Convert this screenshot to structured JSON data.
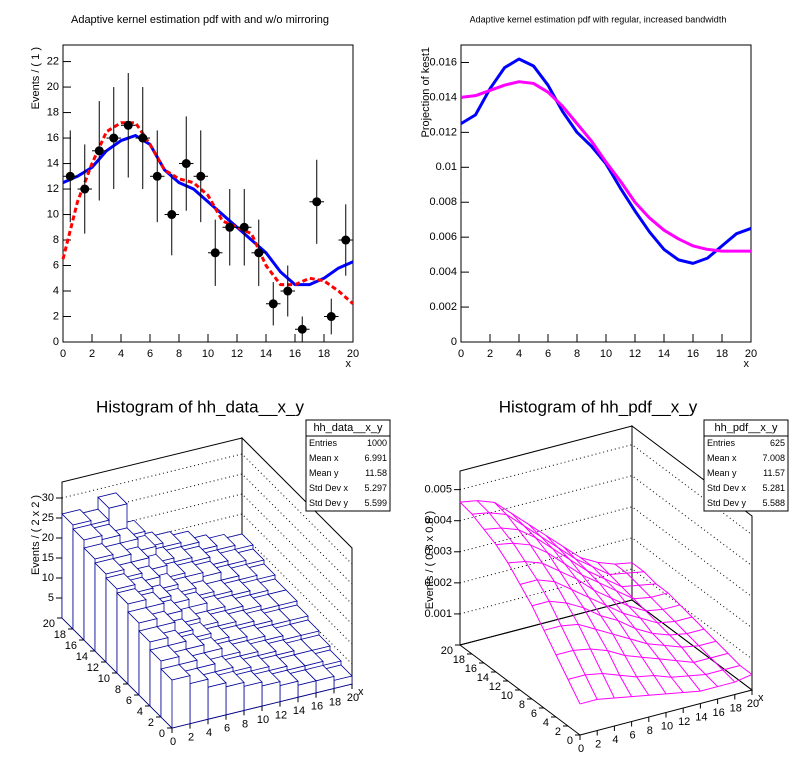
{
  "chart_data": [
    {
      "type": "line",
      "title": "Adaptive kernel estimation pdf with and w/o mirroring",
      "xlabel": "x",
      "ylabel": "Events / ( 1 )",
      "xlim": [
        0,
        20
      ],
      "ylim": [
        0,
        23.3
      ],
      "xticks": [
        0,
        2,
        4,
        6,
        8,
        10,
        12,
        14,
        16,
        18,
        20
      ],
      "yticks": [
        0,
        2,
        4,
        6,
        8,
        10,
        12,
        14,
        16,
        18,
        20,
        22
      ],
      "x": [
        0,
        1,
        2,
        3,
        4,
        5,
        6,
        7,
        8,
        9,
        10,
        11,
        12,
        13,
        14,
        15,
        16,
        17,
        18,
        19,
        20
      ],
      "series": [
        {
          "color": "#0000ff",
          "values": [
            12.5,
            13,
            13.7,
            15,
            15.8,
            16.2,
            15.5,
            13.5,
            12.5,
            12,
            11,
            10,
            9,
            8,
            7,
            5.5,
            4.5,
            4.5,
            5,
            5.8,
            6.3
          ]
        },
        {
          "color": "#ff0000",
          "dashed": true,
          "values": [
            6.5,
            11,
            14,
            16.5,
            17.2,
            17.2,
            15.5,
            13.5,
            12.8,
            12.5,
            11.5,
            9.5,
            9,
            8.5,
            6,
            4.5,
            4.5,
            5,
            4.8,
            4,
            3
          ]
        }
      ],
      "points": {
        "color": "#000000",
        "xerror": 0.5,
        "x": [
          0.5,
          1.5,
          2.5,
          3.5,
          4.5,
          5.5,
          6.5,
          7.5,
          8.5,
          9.5,
          10.5,
          11.5,
          12.5,
          13.5,
          14.5,
          15.5,
          16.5,
          17.5,
          18.5,
          19.5
        ],
        "values": [
          13,
          12,
          15,
          16,
          17,
          16,
          13,
          10,
          14,
          13,
          7,
          9,
          9,
          7,
          3,
          4,
          1,
          11,
          2,
          8
        ],
        "errors": [
          3.6,
          3.5,
          3.9,
          4,
          4.1,
          4,
          3.6,
          3.2,
          3.7,
          3.6,
          2.6,
          3,
          3,
          2.6,
          1.7,
          2,
          1,
          3.3,
          1.4,
          2.8
        ]
      }
    },
    {
      "type": "line",
      "title": "Adaptive kernel estimation pdf with regular, increased bandwidth",
      "xlabel": "x",
      "ylabel": "Projection of kest1",
      "xlim": [
        0,
        20
      ],
      "ylim": [
        0,
        0.017
      ],
      "xticks": [
        0,
        2,
        4,
        6,
        8,
        10,
        12,
        14,
        16,
        18,
        20
      ],
      "yticks": [
        0,
        0.002,
        0.004,
        0.006,
        0.008,
        0.01,
        0.012,
        0.014,
        0.016
      ],
      "x": [
        0,
        1,
        2,
        3,
        4,
        5,
        6,
        7,
        8,
        9,
        10,
        11,
        12,
        13,
        14,
        15,
        16,
        17,
        18,
        19,
        20
      ],
      "series": [
        {
          "color": "#0000ff",
          "values": [
            0.0125,
            0.013,
            0.0145,
            0.0157,
            0.0162,
            0.0158,
            0.0147,
            0.0132,
            0.012,
            0.0112,
            0.0102,
            0.0088,
            0.0075,
            0.0063,
            0.0053,
            0.0047,
            0.0045,
            0.0048,
            0.0055,
            0.0062,
            0.0065
          ]
        },
        {
          "color": "#ff00ff",
          "values": [
            0.014,
            0.0141,
            0.0144,
            0.0147,
            0.0149,
            0.0148,
            0.0143,
            0.0135,
            0.0125,
            0.0115,
            0.0103,
            0.0092,
            0.008,
            0.0071,
            0.0064,
            0.0059,
            0.0055,
            0.0053,
            0.0052,
            0.0052,
            0.0052
          ]
        }
      ]
    },
    {
      "type": "lego",
      "title": "Histogram of hh_data__x_y",
      "zlabel": "Events / ( 2 x 2 )",
      "xlabel": "x",
      "color": "#000099",
      "stats": {
        "title": "hh_data__x_y",
        "rows": [
          {
            "label": "Entries",
            "value": 1000
          },
          {
            "label": "Mean x",
            "value": 6.991
          },
          {
            "label": "Mean y",
            "value": 11.58
          },
          {
            "label": "Std Dev x",
            "value": 5.297
          },
          {
            "label": "Std Dev y",
            "value": 5.599
          }
        ]
      },
      "xlim": [
        0,
        20
      ],
      "ylim": [
        0,
        20
      ],
      "zlim": [
        0,
        34
      ],
      "xticks": [
        0,
        2,
        4,
        6,
        8,
        10,
        12,
        14,
        16,
        18,
        20
      ],
      "yticks": [
        0,
        2,
        4,
        6,
        8,
        10,
        12,
        14,
        16,
        18,
        20
      ],
      "zticks": [
        5,
        10,
        15,
        20,
        25,
        30
      ],
      "xbins": [
        0,
        2,
        4,
        6,
        8,
        10,
        12,
        14,
        16,
        18,
        20
      ],
      "ybins": [
        0,
        2,
        4,
        6,
        8,
        10,
        12,
        14,
        16,
        18,
        20
      ],
      "z": [
        [
          12,
          14,
          16,
          18,
          20,
          21,
          22,
          23,
          25,
          26
        ],
        [
          10,
          12,
          14,
          16,
          18,
          19,
          20,
          22,
          24,
          25
        ],
        [
          8,
          10,
          12,
          13,
          15,
          16,
          18,
          20,
          22,
          28
        ],
        [
          7,
          8,
          10,
          11,
          12,
          14,
          15,
          17,
          19,
          20
        ],
        [
          6,
          7,
          8,
          9,
          10,
          12,
          13,
          14,
          15,
          16
        ],
        [
          5,
          6,
          7,
          8,
          9,
          10,
          11,
          13,
          14,
          15
        ],
        [
          4,
          5,
          6,
          7,
          8,
          9,
          10,
          12,
          13,
          14
        ],
        [
          3,
          4,
          5,
          6,
          7,
          8,
          9,
          10,
          11,
          12
        ],
        [
          3,
          4,
          4,
          5,
          6,
          7,
          8,
          9,
          10,
          11
        ],
        [
          2,
          3,
          4,
          5,
          6,
          7,
          7,
          8,
          9,
          10
        ]
      ]
    },
    {
      "type": "surface",
      "title": "Histogram of hh_pdf__x_y",
      "zlabel": "Events / ( 0.8 x 0.8 )",
      "xlabel": "x",
      "color": "#ff00ff",
      "stats": {
        "title": "hh_pdf__x_y",
        "rows": [
          {
            "label": "Entries",
            "value": 625
          },
          {
            "label": "Mean x",
            "value": 7.008
          },
          {
            "label": "Mean y",
            "value": 11.57
          },
          {
            "label": "Std Dev x",
            "value": 5.281
          },
          {
            "label": "Std Dev y",
            "value": 5.588
          }
        ]
      },
      "xlim": [
        0,
        20
      ],
      "ylim": [
        0,
        20
      ],
      "zlim": [
        0,
        0.0056
      ],
      "xticks": [
        0,
        2,
        4,
        6,
        8,
        10,
        12,
        14,
        16,
        18,
        20
      ],
      "yticks": [
        0,
        2,
        4,
        6,
        8,
        10,
        12,
        14,
        16,
        18,
        20
      ],
      "zticks": [
        0.001,
        0.002,
        0.003,
        0.004,
        0.005
      ],
      "x": [
        0,
        2,
        4,
        6,
        8,
        10,
        12,
        14,
        16,
        18,
        20
      ],
      "y": [
        0,
        2,
        4,
        6,
        8,
        10,
        12,
        14,
        16,
        18,
        20
      ],
      "z": [
        [
          0.001,
          0.0015,
          0.002,
          0.0025,
          0.003,
          0.0034,
          0.0038,
          0.0041,
          0.0043,
          0.0045,
          0.0046
        ],
        [
          0.001,
          0.0015,
          0.002,
          0.0025,
          0.003,
          0.0034,
          0.0037,
          0.004,
          0.0042,
          0.0044,
          0.0045
        ],
        [
          0.0009,
          0.0014,
          0.0019,
          0.0024,
          0.0028,
          0.0032,
          0.0035,
          0.0038,
          0.004,
          0.0042,
          0.0043
        ],
        [
          0.0008,
          0.0012,
          0.0017,
          0.0021,
          0.0025,
          0.0028,
          0.0031,
          0.0034,
          0.0036,
          0.0037,
          0.0038
        ],
        [
          0.0007,
          0.001,
          0.0014,
          0.0018,
          0.0021,
          0.0024,
          0.0027,
          0.0029,
          0.0031,
          0.0032,
          0.0033
        ],
        [
          0.0006,
          0.0009,
          0.0012,
          0.0015,
          0.0018,
          0.002,
          0.0022,
          0.0024,
          0.0026,
          0.0027,
          0.0028
        ],
        [
          0.0005,
          0.0007,
          0.001,
          0.0012,
          0.0014,
          0.0016,
          0.0018,
          0.002,
          0.0021,
          0.0022,
          0.0023
        ],
        [
          0.0004,
          0.0006,
          0.0008,
          0.001,
          0.0011,
          0.0013,
          0.0014,
          0.0016,
          0.0017,
          0.0018,
          0.0018
        ],
        [
          0.0004,
          0.0005,
          0.0006,
          0.0008,
          0.0009,
          0.001,
          0.0011,
          0.0012,
          0.0013,
          0.0014,
          0.0015
        ],
        [
          0.0004,
          0.0005,
          0.0006,
          0.0007,
          0.0008,
          0.0009,
          0.001,
          0.0011,
          0.0012,
          0.0013,
          0.0013
        ],
        [
          0.0005,
          0.0005,
          0.0006,
          0.0007,
          0.0008,
          0.0009,
          0.001,
          0.0011,
          0.0011,
          0.0012,
          0.0012
        ]
      ]
    }
  ]
}
